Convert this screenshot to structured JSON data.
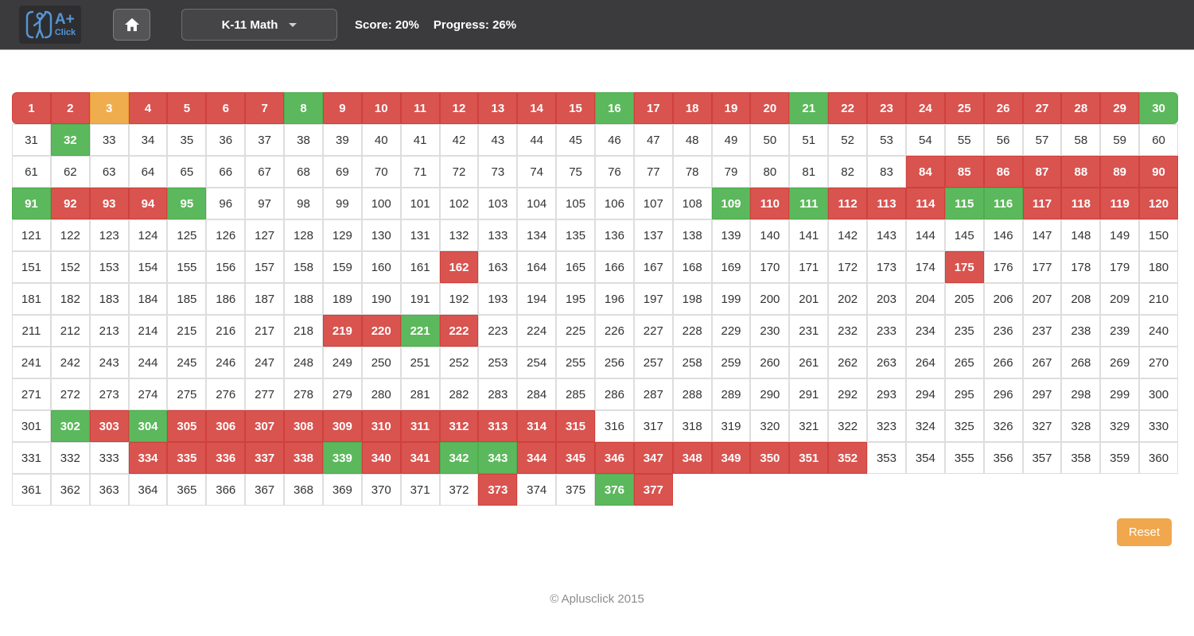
{
  "header": {
    "logo": {
      "text_top": "A+",
      "text_bottom": "Click"
    },
    "icons": {
      "logo_figure": "person-raising-hand-icon",
      "home": "house-icon",
      "dropdown_caret": "caret-down-icon"
    },
    "course_dropdown": {
      "selected": "K-11 Math"
    },
    "score": {
      "label": "Score:",
      "value": "20%"
    },
    "progress": {
      "label": "Progress:",
      "value": "26%"
    }
  },
  "grid": {
    "total_cells": 377,
    "columns": 30,
    "statuses": {
      "red": [
        1,
        2,
        4,
        5,
        6,
        7,
        9,
        10,
        11,
        12,
        13,
        14,
        15,
        17,
        18,
        19,
        20,
        22,
        23,
        24,
        25,
        26,
        27,
        28,
        29,
        84,
        85,
        86,
        87,
        88,
        89,
        90,
        92,
        93,
        94,
        110,
        112,
        113,
        114,
        117,
        118,
        119,
        120,
        162,
        175,
        219,
        220,
        222,
        303,
        305,
        306,
        307,
        308,
        309,
        310,
        311,
        312,
        313,
        314,
        315,
        334,
        335,
        336,
        337,
        338,
        340,
        341,
        344,
        345,
        346,
        347,
        348,
        349,
        350,
        351,
        352,
        373,
        377
      ],
      "green": [
        8,
        16,
        21,
        30,
        32,
        91,
        95,
        109,
        111,
        115,
        116,
        221,
        302,
        304,
        339,
        342,
        343,
        376
      ],
      "orange": [
        3
      ]
    },
    "colors": {
      "red": "#d9534f",
      "green": "#5cb85c",
      "orange": "#f0ad4e",
      "default": "#ffffff",
      "brand_blue": "#5596d8",
      "reset_orange": "#f0a74e"
    }
  },
  "reset_button": {
    "label": "Reset"
  },
  "footer": {
    "copyright": "© Aplusclick 2015"
  }
}
